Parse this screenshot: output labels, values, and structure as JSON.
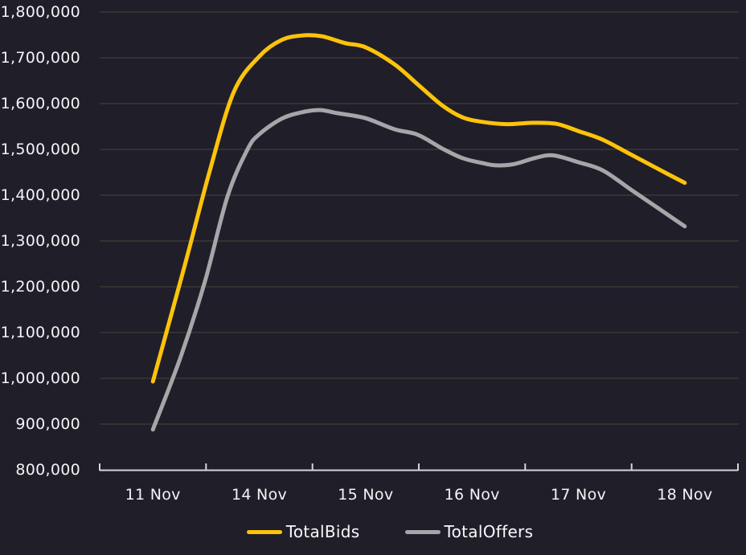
{
  "colors": {
    "background": "#201E29",
    "gridline": "#403F35",
    "axis": "#D6D4D6",
    "label": "#F5F3F4",
    "totalbids": "#FDC30B",
    "totaloffers": "#A6A6A8"
  },
  "legend": {
    "position": "bottom-center"
  },
  "chart_data": {
    "type": "line",
    "title": "",
    "xlabel": "",
    "ylabel": "",
    "grid": "horizontal",
    "legend_position": "bottom-center",
    "categories": [
      "11 Nov",
      "14 Nov",
      "15 Nov",
      "16 Nov",
      "17 Nov",
      "18 Nov"
    ],
    "y_axis": {
      "min": 800000,
      "max": 1800000,
      "tick_interval": 100000,
      "tick_labels": [
        "800,000",
        "900,000",
        "1,000,000",
        "1,100,000",
        "1,200,000",
        "1,300,000",
        "1,400,000",
        "1,500,000",
        "1,600,000",
        "1,700,000",
        "1,800,000"
      ]
    },
    "series": [
      {
        "name": "TotalBids",
        "color": "#FDC30B",
        "values": [
          993000,
          1703000,
          1723000,
          1558000,
          1540000,
          1427000
        ],
        "curve_samples": [
          [
            0.0,
            993000
          ],
          [
            0.3,
            1247000
          ],
          [
            0.53,
            1449000
          ],
          [
            0.76,
            1625000
          ],
          [
            1.0,
            1703000
          ],
          [
            1.21,
            1739000
          ],
          [
            1.41,
            1749000
          ],
          [
            1.59,
            1747000
          ],
          [
            1.81,
            1732000
          ],
          [
            2.0,
            1723000
          ],
          [
            2.27,
            1686000
          ],
          [
            2.49,
            1642000
          ],
          [
            2.72,
            1596000
          ],
          [
            2.91,
            1570000
          ],
          [
            3.1,
            1560000
          ],
          [
            3.33,
            1555000
          ],
          [
            3.57,
            1558000
          ],
          [
            3.79,
            1556000
          ],
          [
            4.0,
            1540000
          ],
          [
            4.23,
            1521000
          ],
          [
            4.5,
            1488000
          ],
          [
            4.76,
            1456000
          ],
          [
            5.0,
            1427000
          ]
        ]
      },
      {
        "name": "TotalOffers",
        "color": "#A6A6A8",
        "values": [
          888000,
          1533000,
          1568000,
          1467000,
          1472000,
          1332000
        ],
        "curve_samples": [
          [
            0.0,
            888000
          ],
          [
            0.26,
            1046000
          ],
          [
            0.49,
            1212000
          ],
          [
            0.7,
            1396000
          ],
          [
            0.89,
            1500000
          ],
          [
            1.0,
            1533000
          ],
          [
            1.21,
            1567000
          ],
          [
            1.4,
            1581000
          ],
          [
            1.57,
            1586000
          ],
          [
            1.74,
            1579000
          ],
          [
            2.0,
            1568000
          ],
          [
            2.27,
            1544000
          ],
          [
            2.49,
            1532000
          ],
          [
            2.72,
            1502000
          ],
          [
            2.91,
            1481000
          ],
          [
            3.1,
            1470000
          ],
          [
            3.23,
            1465000
          ],
          [
            3.4,
            1468000
          ],
          [
            3.59,
            1481000
          ],
          [
            3.76,
            1487000
          ],
          [
            4.0,
            1472000
          ],
          [
            4.23,
            1454000
          ],
          [
            4.5,
            1411000
          ],
          [
            4.76,
            1370000
          ],
          [
            5.0,
            1332000
          ]
        ]
      }
    ]
  }
}
